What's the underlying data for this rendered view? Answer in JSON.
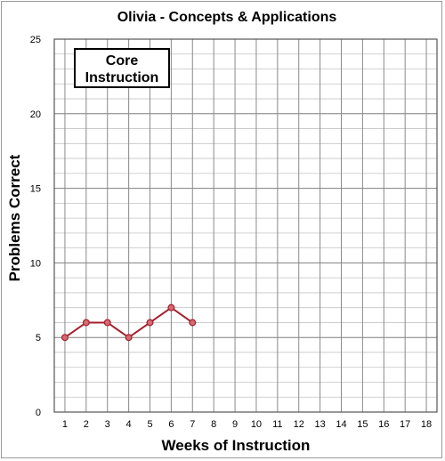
{
  "chart_data": {
    "type": "line",
    "title": "Olivia - Concepts & Applications",
    "xlabel": "Weeks of Instruction",
    "ylabel": "Problems Correct",
    "x_ticks": [
      1,
      2,
      3,
      4,
      5,
      6,
      7,
      8,
      9,
      10,
      11,
      12,
      13,
      14,
      15,
      16,
      17,
      18
    ],
    "y_ticks": [
      0,
      5,
      10,
      15,
      20,
      25
    ],
    "xlim": [
      0.5,
      18.5
    ],
    "ylim": [
      0,
      25
    ],
    "grid": true,
    "annotation": {
      "line1": "Core",
      "line2": "Instruction"
    },
    "series": [
      {
        "x": [
          1,
          2,
          3,
          4,
          5,
          6,
          7
        ],
        "values": [
          5,
          6,
          6,
          5,
          6,
          7,
          6
        ],
        "color": "#a31f2e",
        "marker_fill": "#d56a72"
      }
    ]
  }
}
